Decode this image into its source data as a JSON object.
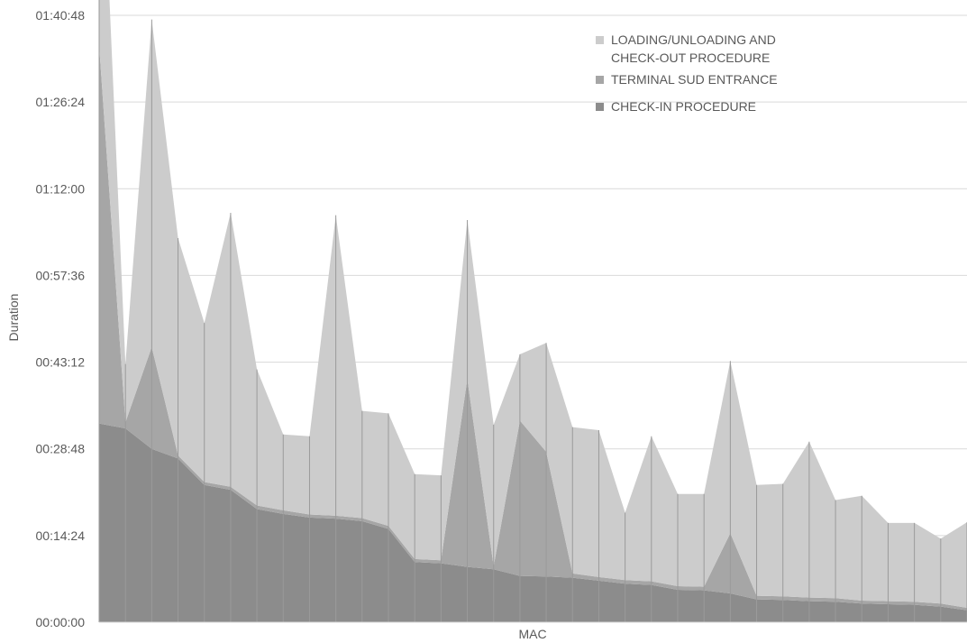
{
  "chart_data": {
    "type": "area",
    "stacked": true,
    "title": "",
    "xlabel": "MAC",
    "ylabel": "Duration",
    "ylim_seconds": [
      0,
      6048
    ],
    "y_ticks": [
      "00:00:00",
      "00:14:24",
      "00:28:48",
      "00:43:12",
      "00:57:36",
      "01:12:00",
      "01:26:24",
      "01:40:48"
    ],
    "grid": true,
    "legend_position": "top-right",
    "series": [
      {
        "name": "CHECK-IN PROCEDURE",
        "color": "#8c8c8c",
        "values_minutes": [
          33.0,
          32.2,
          28.8,
          27.2,
          22.8,
          22.0,
          18.8,
          18.0,
          17.4,
          17.2,
          16.8,
          15.5,
          10.0,
          9.8,
          9.2,
          8.8,
          7.7,
          7.6,
          7.4,
          6.9,
          6.4,
          6.2,
          5.4,
          5.3,
          4.8,
          3.8,
          3.7,
          3.5,
          3.4,
          3.1,
          3.0,
          2.9,
          2.6,
          2.0
        ]
      },
      {
        "name": "TERMINAL SUD ENTRANCE",
        "color": "#a6a6a6",
        "values_minutes": [
          62.8,
          1.0,
          16.9,
          0.5,
          0.5,
          0.5,
          0.6,
          0.6,
          0.5,
          0.5,
          0.5,
          0.5,
          0.5,
          0.5,
          31.2,
          0.5,
          25.8,
          20.7,
          0.7,
          0.6,
          0.6,
          0.6,
          0.6,
          0.6,
          10.0,
          0.6,
          0.6,
          0.6,
          0.6,
          0.5,
          0.5,
          0.5,
          0.5,
          0.4
        ]
      },
      {
        "name": "LOADING/UNLOADING AND CHECK-OUT PROCEDURE",
        "color": "#cccccc",
        "values_minutes": [
          46.8,
          9.7,
          54.4,
          36.1,
          26.4,
          45.5,
          22.6,
          12.6,
          13.0,
          49.9,
          17.8,
          18.7,
          14.1,
          14.1,
          26.4,
          23.5,
          11.0,
          18.1,
          24.3,
          24.4,
          11.2,
          24.1,
          15.3,
          15.4,
          28.6,
          18.4,
          18.7,
          25.9,
          16.3,
          17.4,
          13.0,
          13.1,
          10.8,
          14.2
        ]
      }
    ]
  }
}
